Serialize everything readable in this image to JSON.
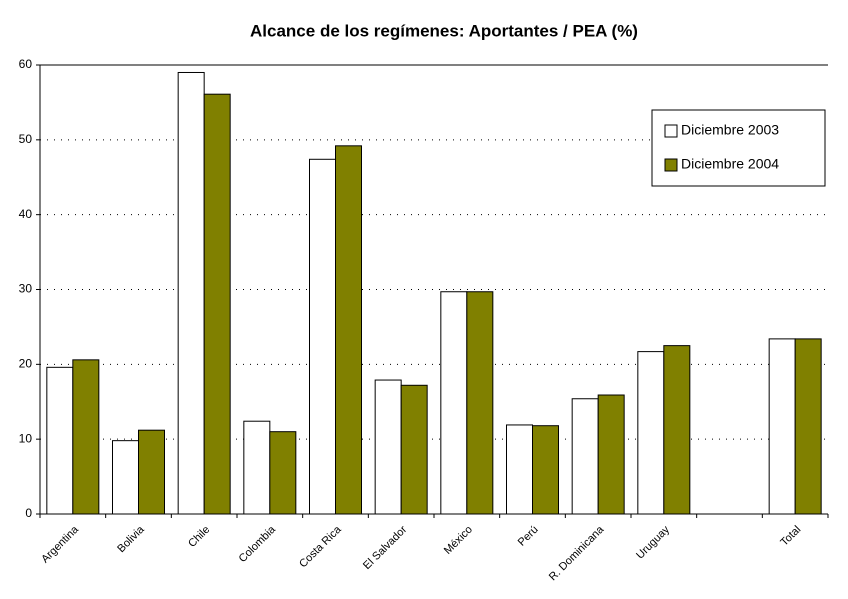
{
  "chart_data": {
    "type": "bar",
    "title": "Alcance de los regímenes: Aportantes / PEA  (%)",
    "categories": [
      "Argentina",
      "Bolivia",
      "Chile",
      "Colombia",
      "Costa Rica",
      "El Salvador",
      "México",
      "Perú",
      "R. Dominicana",
      "Uruguay",
      null,
      "Total"
    ],
    "series": [
      {
        "name": "Diciembre 2003",
        "color": "#ffffff",
        "values": [
          19.6,
          9.8,
          59,
          12.4,
          47.4,
          17.9,
          29.7,
          11.9,
          15.4,
          21.7,
          null,
          23.4
        ]
      },
      {
        "name": "Diciembre 2004",
        "color": "#808000",
        "values": [
          20.6,
          11.2,
          56.1,
          11.0,
          49.2,
          17.2,
          29.7,
          11.8,
          15.9,
          22.5,
          null,
          23.4
        ]
      }
    ],
    "ylim": [
      0,
      60
    ],
    "yticks": [
      0,
      10,
      20,
      30,
      40,
      50,
      60
    ],
    "grid": true,
    "legend": "top-right"
  }
}
